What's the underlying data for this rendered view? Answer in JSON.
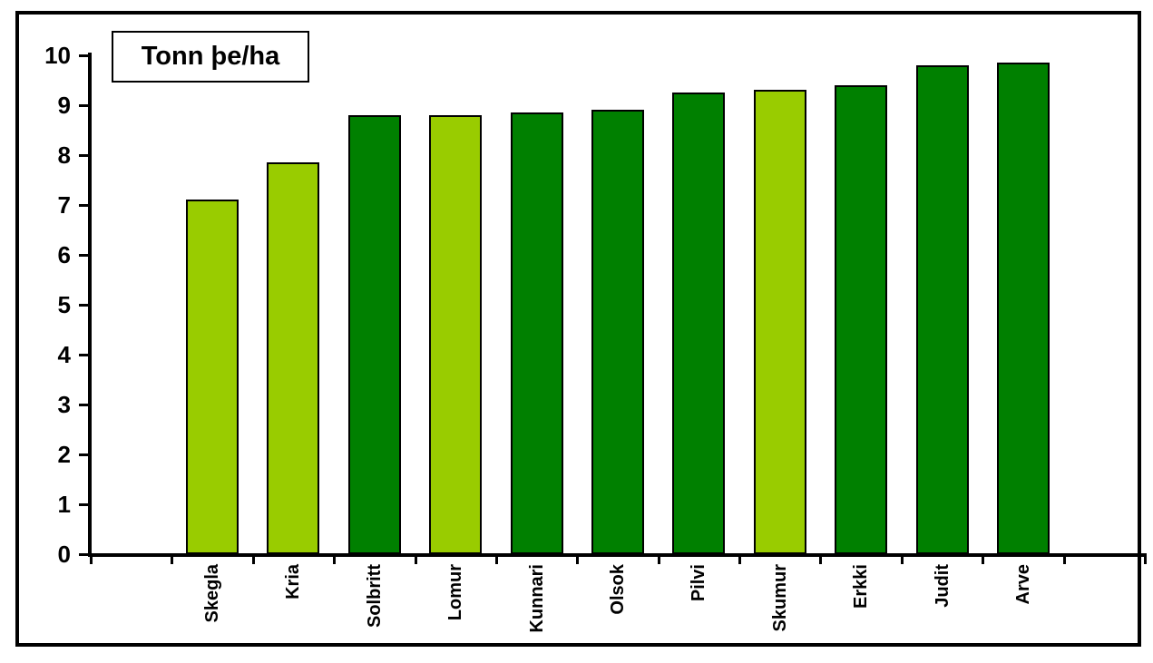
{
  "chart_data": {
    "type": "bar",
    "title": "Tonn þe/ha",
    "categories": [
      "Skegla",
      "Kria",
      "Solbritt",
      "Lomur",
      "Kunnari",
      "Olsok",
      "Pilvi",
      "Skumur",
      "Erkki",
      "Judit",
      "Arve"
    ],
    "values": [
      7.1,
      7.85,
      8.8,
      8.8,
      8.85,
      8.9,
      9.25,
      9.3,
      9.4,
      9.8,
      9.85
    ],
    "bar_color_keys": [
      "light",
      "light",
      "dark",
      "light",
      "dark",
      "dark",
      "dark",
      "light",
      "dark",
      "dark",
      "dark"
    ],
    "colors": {
      "light": "#99CC00",
      "dark": "#008000",
      "bar_border": "#000000",
      "axis": "#000000"
    },
    "xlabel": "",
    "ylabel": "",
    "ylim": [
      0,
      10
    ],
    "yticks": [
      0,
      1,
      2,
      3,
      4,
      5,
      6,
      7,
      8,
      9,
      10
    ],
    "x_label_rotation_deg": 90,
    "empty_slots_before": 1,
    "empty_slots_after": 1,
    "grid": false,
    "legend_position": "none"
  }
}
